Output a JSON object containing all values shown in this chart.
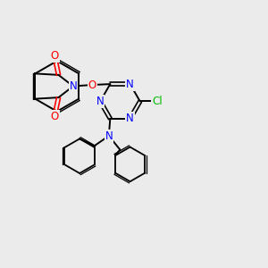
{
  "background_color": "#ebebeb",
  "atom_colors": {
    "C": "#000000",
    "N": "#0000ff",
    "O": "#ff0000",
    "Cl": "#00bb00",
    "bond": "#000000"
  },
  "figsize": [
    3.0,
    3.0
  ],
  "dpi": 100
}
